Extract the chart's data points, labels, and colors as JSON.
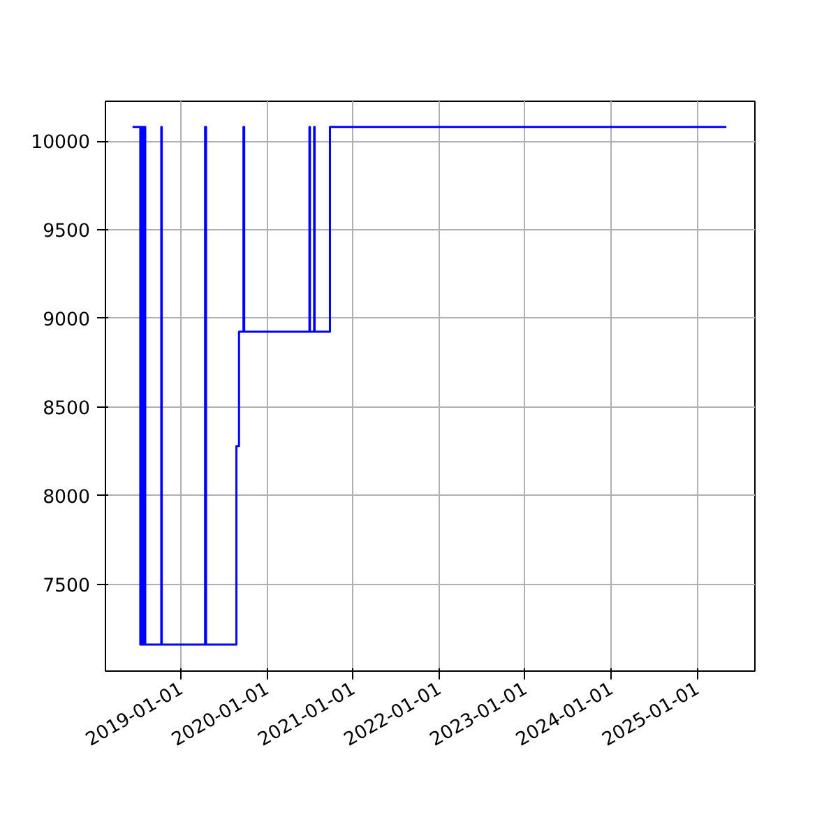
{
  "chart_data": {
    "type": "line",
    "x": [
      "2018-06-10",
      "2018-07-13",
      "2018-07-13",
      "2018-07-18",
      "2018-07-18",
      "2018-07-23",
      "2018-07-23",
      "2018-07-28",
      "2018-07-28",
      "2018-08-03",
      "2018-08-03",
      "2018-10-10",
      "2018-10-10",
      "2018-10-12",
      "2018-10-12",
      "2019-04-14",
      "2019-04-14",
      "2019-04-18",
      "2019-04-18",
      "2019-08-25",
      "2019-08-25",
      "2019-09-05",
      "2019-09-05",
      "2019-09-24",
      "2019-09-24",
      "2019-09-27",
      "2019-09-27",
      "2020-06-30",
      "2020-06-30",
      "2020-07-02",
      "2020-07-02",
      "2020-07-20",
      "2020-07-20",
      "2020-07-22",
      "2020-07-22",
      "2020-09-25",
      "2020-09-25",
      "2025-05-05"
    ],
    "series": [
      {
        "color": "#0000ff",
        "values": [
          10080,
          10080,
          7160,
          7160,
          10080,
          10080,
          7160,
          7160,
          10080,
          10080,
          7160,
          7160,
          10080,
          10080,
          7160,
          7160,
          10080,
          10080,
          7160,
          7160,
          8280,
          8280,
          8925,
          8925,
          10080,
          10080,
          8925,
          8925,
          10080,
          10080,
          8925,
          8925,
          10080,
          10080,
          8925,
          8925,
          10080,
          10080
        ]
      }
    ],
    "xlim": [
      "2018-02-15",
      "2025-09-03"
    ],
    "xticks": [
      "2019-01-01",
      "2020-01-01",
      "2021-01-01",
      "2022-01-01",
      "2023-01-01",
      "2024-01-01",
      "2025-01-01"
    ],
    "ylim": [
      7010,
      10225
    ],
    "yticks": [
      7500,
      8000,
      8500,
      9000,
      9500,
      10000
    ],
    "grid": true,
    "line_style": "solid"
  }
}
